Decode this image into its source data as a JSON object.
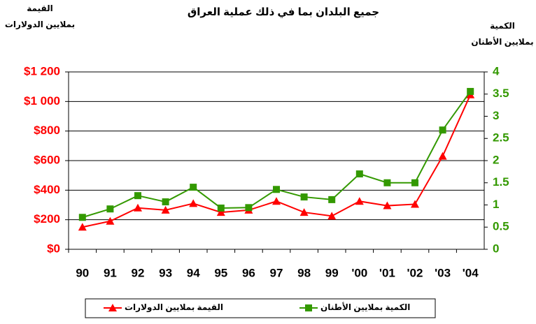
{
  "chart_data": {
    "type": "line",
    "title": "جميع البلدان بما في ذلك عملية العراق",
    "y_label": [
      "القيمة",
      "بملايين الدولارات"
    ],
    "y2_label": [
      "الكمية",
      "بملايين الأطنان"
    ],
    "categories": [
      "90",
      "91",
      "92",
      "93",
      "94",
      "95",
      "96",
      "97",
      "98",
      "99",
      "'00",
      "'01",
      "'02",
      "'03",
      "'04"
    ],
    "series": [
      {
        "name": "القيمة بملايين الدولارات",
        "color": "#ff0000",
        "marker": "triangle",
        "values": [
          150,
          190,
          280,
          265,
          310,
          250,
          265,
          325,
          250,
          225,
          325,
          295,
          305,
          630,
          1045
        ]
      },
      {
        "name": "الكمية بملايين الأطنان",
        "color": "#339900",
        "marker": "square",
        "axis": "y2",
        "values": [
          0.72,
          0.91,
          1.21,
          1.07,
          1.4,
          0.93,
          0.94,
          1.35,
          1.18,
          1.12,
          1.7,
          1.5,
          1.5,
          2.69,
          3.56
        ]
      }
    ],
    "ylim": [
      0,
      1200
    ],
    "yticks": [
      {
        "value": 0,
        "label": "$0"
      },
      {
        "value": 200,
        "label": "$200"
      },
      {
        "value": 400,
        "label": "$400"
      },
      {
        "value": 600,
        "label": "$600"
      },
      {
        "value": 800,
        "label": "$800"
      },
      {
        "value": 1000,
        "label": "$1 000"
      },
      {
        "value": 1200,
        "label": "$1 200"
      }
    ],
    "y2lim": [
      0,
      4
    ],
    "y2ticks": [
      0,
      0.5,
      1,
      1.5,
      2,
      2.5,
      3,
      3.5,
      4
    ],
    "grid": true
  }
}
